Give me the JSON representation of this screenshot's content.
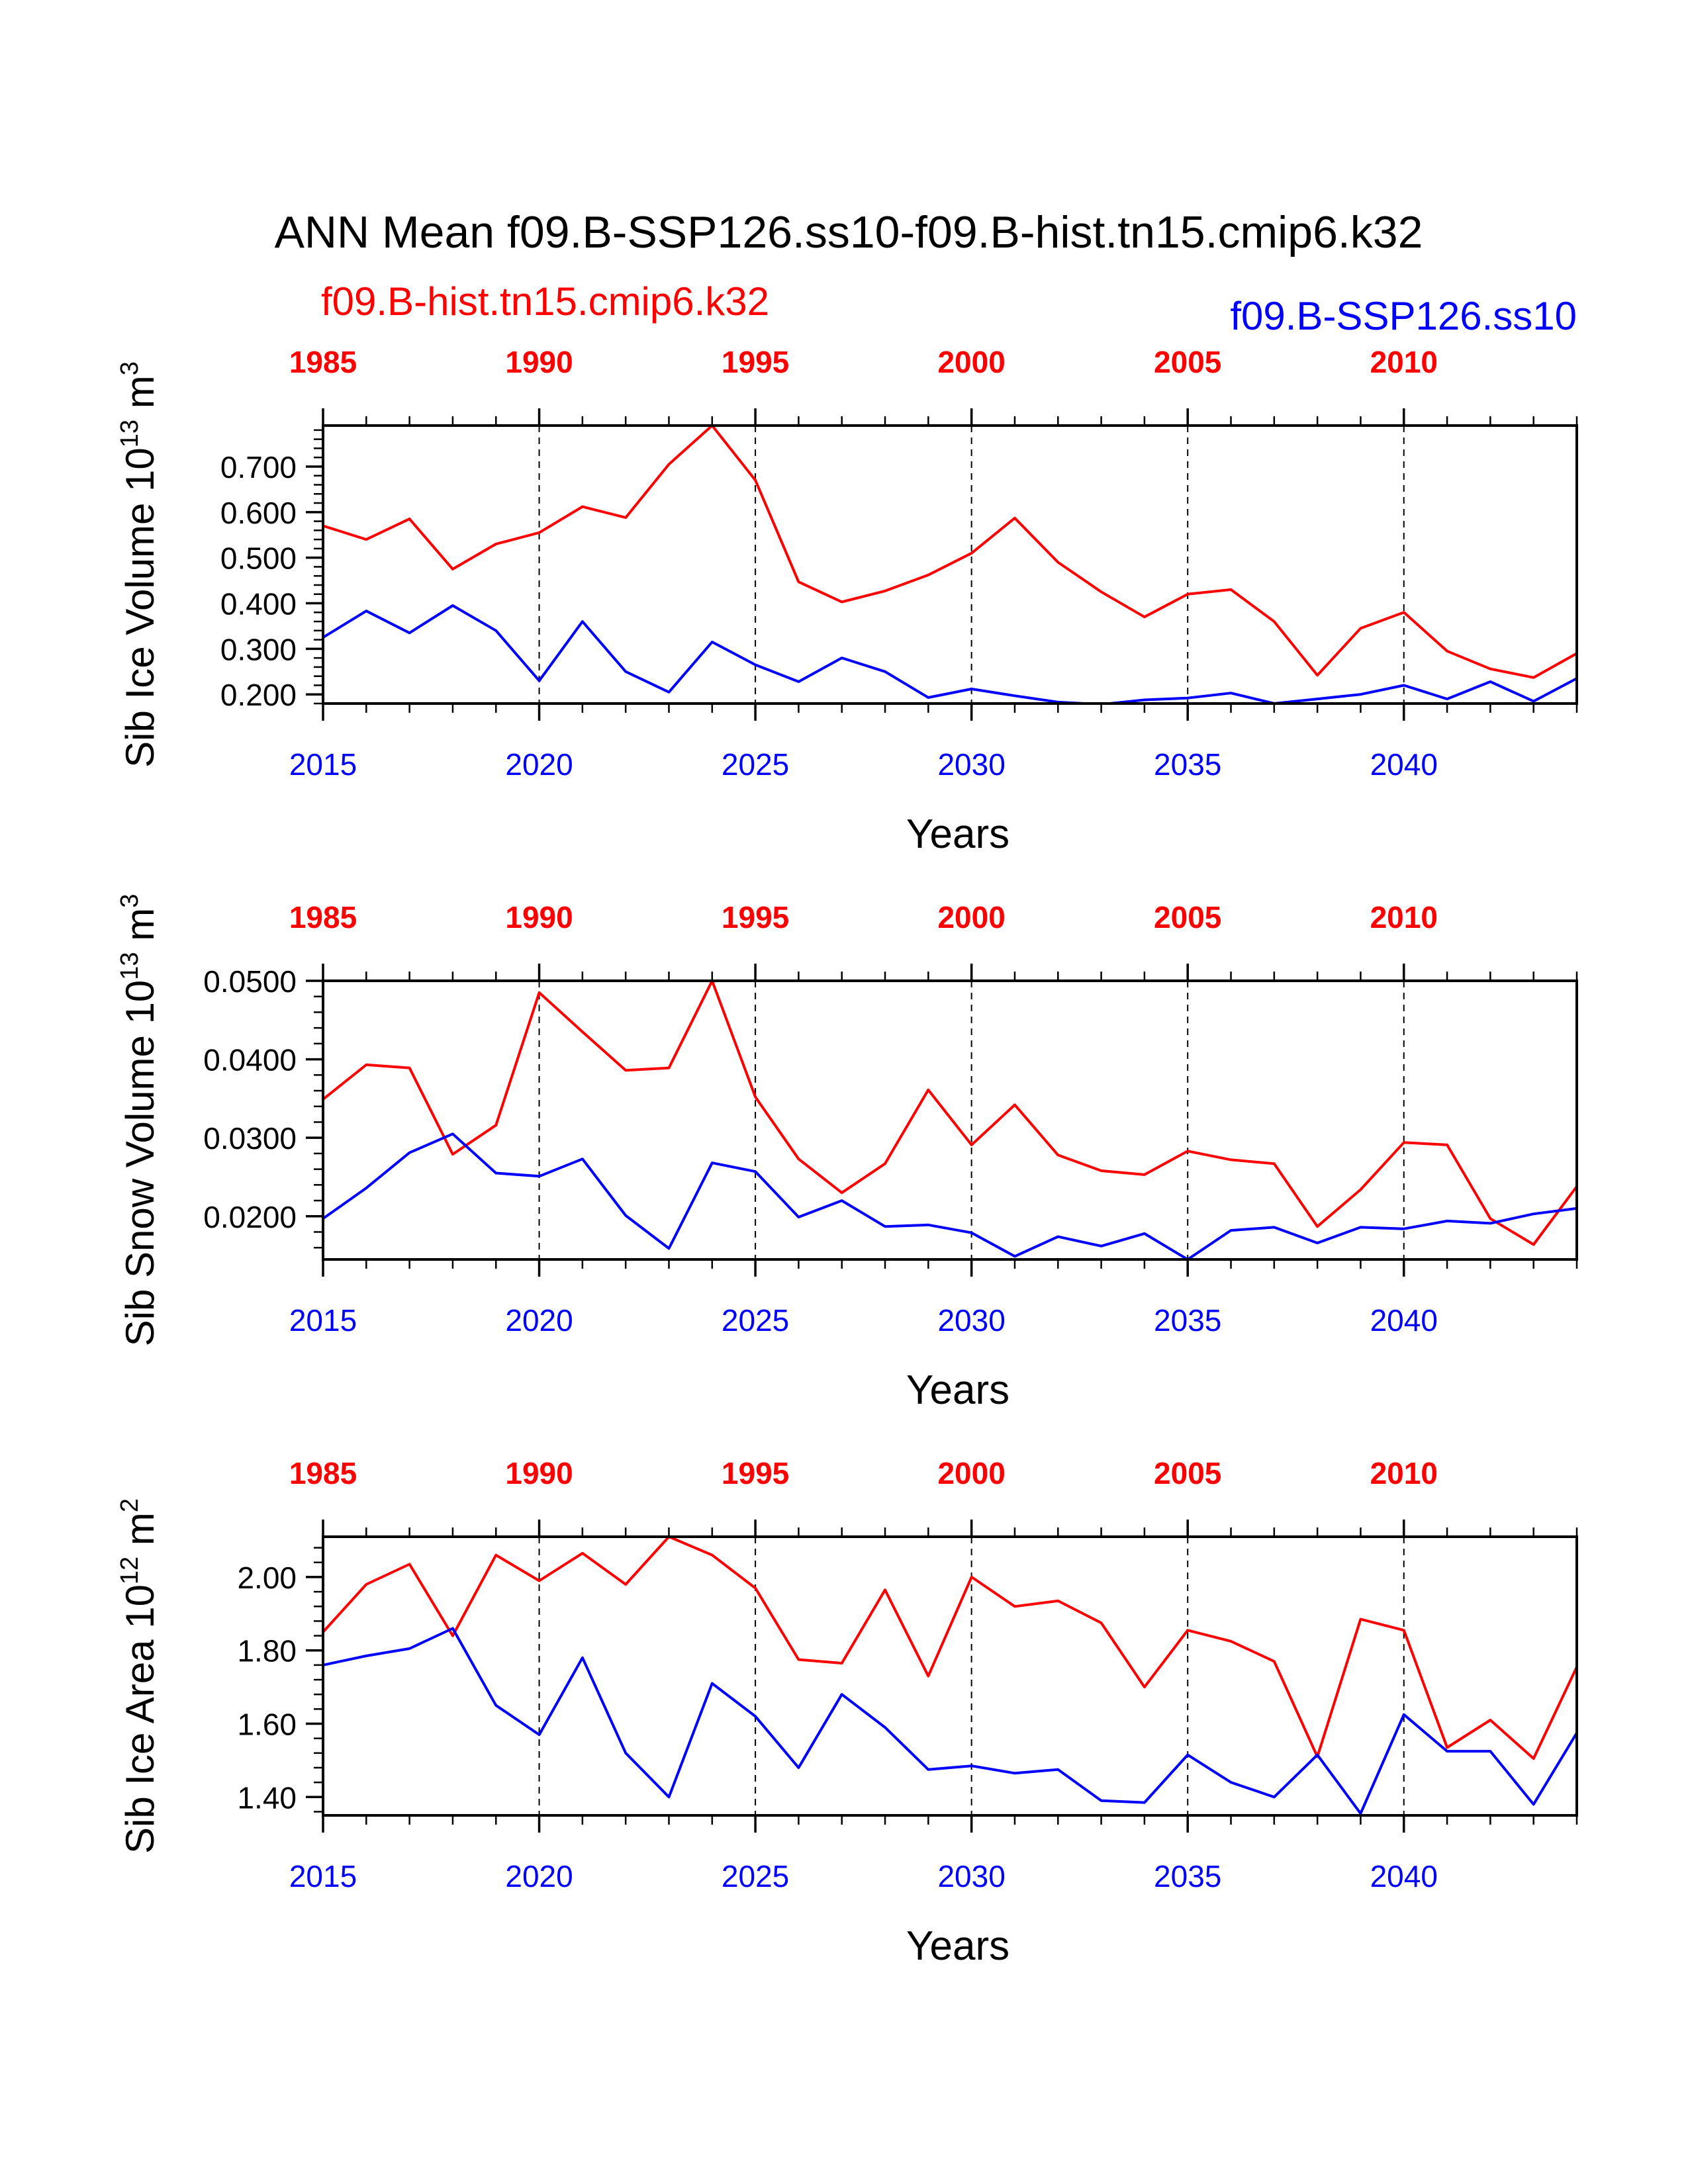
{
  "title": "ANN Mean f09.B-SSP126.ss10-f09.B-hist.tn15.cmip6.k32",
  "legend": {
    "hist_label": "f09.B-hist.tn15.cmip6.k32",
    "ssp_label": "f09.B-SSP126.ss10"
  },
  "colors": {
    "hist": "#ff0000",
    "ssp": "#0000ff",
    "axis": "#000000"
  },
  "chart_data": [
    {
      "type": "line",
      "ylabel": "Sib Ice Volume 10",
      "ylabel_exp": "13",
      "ylabel_unit": "m",
      "ylabel_unit_exp": "3",
      "xlabel": "Years",
      "ylim": [
        0.18,
        0.79
      ],
      "yticks": [
        0.2,
        0.3,
        0.4,
        0.5,
        0.6,
        0.7
      ],
      "ytick_labels": [
        "0.200",
        "0.300",
        "0.400",
        "0.500",
        "0.600",
        "0.700"
      ],
      "yminor_step": 0.02,
      "xlim": [
        2015,
        2044
      ],
      "bottom_ticks": [
        2015,
        2020,
        2025,
        2030,
        2035,
        2040
      ],
      "bottom_tick_labels": [
        "2015",
        "2020",
        "2025",
        "2030",
        "2035",
        "2040"
      ],
      "top_tick_labels": [
        "1985",
        "1990",
        "1995",
        "2000",
        "2005",
        "2010"
      ],
      "x": [
        2015,
        2016,
        2017,
        2018,
        2019,
        2020,
        2021,
        2022,
        2023,
        2024,
        2025,
        2026,
        2027,
        2028,
        2029,
        2030,
        2031,
        2032,
        2033,
        2034,
        2035,
        2036,
        2037,
        2038,
        2039,
        2040,
        2041,
        2042,
        2043,
        2044
      ],
      "series": [
        {
          "name": "f09.B-hist.tn15.cmip6.k32",
          "color": "#ff0000",
          "values": [
            0.57,
            0.54,
            0.585,
            0.475,
            0.53,
            0.555,
            0.612,
            0.588,
            0.705,
            0.79,
            0.67,
            0.447,
            0.403,
            0.427,
            0.462,
            0.51,
            0.587,
            0.49,
            0.425,
            0.37,
            0.42,
            0.43,
            0.36,
            0.242,
            0.345,
            0.38,
            0.295,
            0.256,
            0.237,
            0.29
          ]
        },
        {
          "name": "f09.B-SSP126.ss10",
          "color": "#0000ff",
          "values": [
            0.325,
            0.383,
            0.335,
            0.395,
            0.34,
            0.23,
            0.36,
            0.25,
            0.205,
            0.315,
            0.265,
            0.228,
            0.28,
            0.25,
            0.193,
            0.212,
            0.197,
            0.183,
            0.178,
            0.188,
            0.192,
            0.203,
            0.18,
            0.19,
            0.2,
            0.22,
            0.19,
            0.228,
            0.185,
            0.235
          ]
        }
      ]
    },
    {
      "type": "line",
      "ylabel": "Sib Snow Volume 10",
      "ylabel_exp": "13",
      "ylabel_unit": "m",
      "ylabel_unit_exp": "3",
      "xlabel": "Years",
      "ylim": [
        0.0145,
        0.05
      ],
      "yticks": [
        0.02,
        0.03,
        0.04,
        0.05
      ],
      "ytick_labels": [
        "0.0200",
        "0.0300",
        "0.0400",
        "0.0500"
      ],
      "yminor_step": 0.002,
      "xlim": [
        2015,
        2044
      ],
      "bottom_ticks": [
        2015,
        2020,
        2025,
        2030,
        2035,
        2040
      ],
      "bottom_tick_labels": [
        "2015",
        "2020",
        "2025",
        "2030",
        "2035",
        "2040"
      ],
      "top_tick_labels": [
        "1985",
        "1990",
        "1995",
        "2000",
        "2005",
        "2010"
      ],
      "x": [
        2015,
        2016,
        2017,
        2018,
        2019,
        2020,
        2021,
        2022,
        2023,
        2024,
        2025,
        2026,
        2027,
        2028,
        2029,
        2030,
        2031,
        2032,
        2033,
        2034,
        2035,
        2036,
        2037,
        2038,
        2039,
        2040,
        2041,
        2042,
        2043,
        2044
      ],
      "series": [
        {
          "name": "f09.B-hist.tn15.cmip6.k32",
          "color": "#ff0000",
          "values": [
            0.0349,
            0.0393,
            0.0389,
            0.0279,
            0.0316,
            0.0485,
            0.0435,
            0.0386,
            0.0389,
            0.05,
            0.0352,
            0.0273,
            0.023,
            0.0267,
            0.0361,
            0.0291,
            0.0342,
            0.0278,
            0.0258,
            0.0253,
            0.0283,
            0.0272,
            0.0267,
            0.0187,
            0.0234,
            0.0294,
            0.0291,
            0.0197,
            0.0164,
            0.0238
          ]
        },
        {
          "name": "f09.B-SSP126.ss10",
          "color": "#0000ff",
          "values": [
            0.0197,
            0.0236,
            0.0281,
            0.0305,
            0.0255,
            0.0251,
            0.0273,
            0.0201,
            0.0159,
            0.0268,
            0.0257,
            0.0199,
            0.022,
            0.0187,
            0.0189,
            0.0179,
            0.0149,
            0.0174,
            0.0162,
            0.0178,
            0.0145,
            0.0182,
            0.0186,
            0.0166,
            0.0186,
            0.0184,
            0.0194,
            0.0191,
            0.0203,
            0.021
          ]
        }
      ]
    },
    {
      "type": "line",
      "ylabel": "Sib Ice Area 10",
      "ylabel_exp": "12",
      "ylabel_unit": "m",
      "ylabel_unit_exp": "2",
      "xlabel": "Years",
      "ylim": [
        1.35,
        2.11
      ],
      "yticks": [
        1.4,
        1.6,
        1.8,
        2.0
      ],
      "ytick_labels": [
        "1.40",
        "1.60",
        "1.80",
        "2.00"
      ],
      "yminor_step": 0.04,
      "xlim": [
        2015,
        2044
      ],
      "bottom_ticks": [
        2015,
        2020,
        2025,
        2030,
        2035,
        2040
      ],
      "bottom_tick_labels": [
        "2015",
        "2020",
        "2025",
        "2030",
        "2035",
        "2040"
      ],
      "top_tick_labels": [
        "1985",
        "1990",
        "1995",
        "2000",
        "2005",
        "2010"
      ],
      "x": [
        2015,
        2016,
        2017,
        2018,
        2019,
        2020,
        2021,
        2022,
        2023,
        2024,
        2025,
        2026,
        2027,
        2028,
        2029,
        2030,
        2031,
        2032,
        2033,
        2034,
        2035,
        2036,
        2037,
        2038,
        2039,
        2040,
        2041,
        2042,
        2043,
        2044
      ],
      "series": [
        {
          "name": "f09.B-hist.tn15.cmip6.k32",
          "color": "#ff0000",
          "values": [
            1.85,
            1.98,
            2.035,
            1.84,
            2.06,
            1.99,
            2.065,
            1.98,
            2.11,
            2.06,
            1.97,
            1.775,
            1.765,
            1.965,
            1.73,
            2.0,
            1.92,
            1.935,
            1.875,
            1.7,
            1.855,
            1.825,
            1.77,
            1.51,
            1.885,
            1.855,
            1.535,
            1.61,
            1.505,
            1.755
          ]
        },
        {
          "name": "f09.B-SSP126.ss10",
          "color": "#0000ff",
          "values": [
            1.76,
            1.785,
            1.805,
            1.86,
            1.65,
            1.57,
            1.78,
            1.52,
            1.4,
            1.71,
            1.62,
            1.48,
            1.68,
            1.59,
            1.475,
            1.485,
            1.465,
            1.475,
            1.39,
            1.385,
            1.515,
            1.44,
            1.4,
            1.515,
            1.355,
            1.625,
            1.525,
            1.525,
            1.38,
            1.575
          ]
        }
      ]
    }
  ]
}
